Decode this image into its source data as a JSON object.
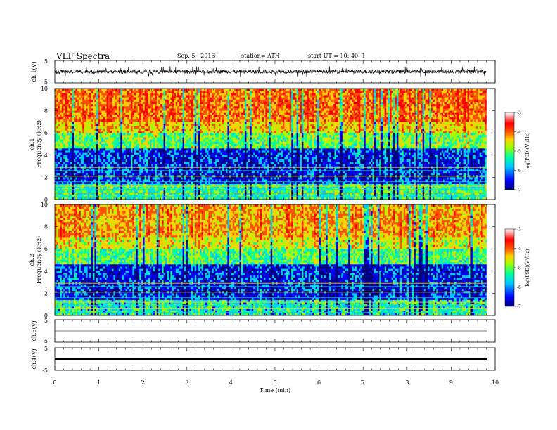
{
  "header": {
    "title": "VLF  Spectra",
    "date": "Sep. 5  , 2016",
    "station": "station= ATH",
    "start_time": "start  UT  =    10: 40: 1"
  },
  "chart_data": [
    {
      "type": "line",
      "panel": "ch1-waveform",
      "ylabel": "ch.1(V)",
      "y_ticks": [
        "5",
        "-5"
      ],
      "ylim": [
        -5,
        5
      ],
      "xlim": [
        0,
        10
      ],
      "data_extent": [
        0,
        9.8
      ],
      "trace": "dense noisy waveform, mostly within about ±1 V with frequent spikes to about ±2.5 V"
    },
    {
      "type": "heatmap",
      "panel": "ch1-spectrogram",
      "ylabel_line1": "ch.1",
      "ylabel_line2": "Frequency  (kHz)",
      "y_ticks": [
        "0",
        "2",
        "4",
        "6",
        "8",
        "10"
      ],
      "ylim": [
        0,
        10
      ],
      "xlim": [
        0,
        10
      ],
      "data_extent": [
        0,
        9.8
      ],
      "colorbar": {
        "label": "log(PSD)(V²/Hz)",
        "ticks": [
          "-3",
          "-4",
          "-5",
          "-6",
          "-7"
        ],
        "range": [
          -7,
          -3
        ]
      },
      "description": "High PSD (red/orange) above ~6 kHz, green/yellow 4–6 kHz, low PSD (blue) 1.5–4 kHz, with bright horizontal narrowband lines below 2 kHz"
    },
    {
      "type": "heatmap",
      "panel": "ch2-spectrogram",
      "ylabel_line1": "ch.2",
      "ylabel_line2": "Frequency  (kHz)",
      "y_ticks": [
        "0",
        "2",
        "4",
        "6",
        "8",
        "10"
      ],
      "ylim": [
        0,
        10
      ],
      "xlim": [
        0,
        10
      ],
      "data_extent": [
        0,
        9.8
      ],
      "colorbar": {
        "label": "log(PSD)(V²/Hz)",
        "ticks": [
          "-3",
          "-4",
          "-5",
          "-6",
          "-7"
        ],
        "range": [
          -7,
          -3
        ]
      },
      "description": "Similar structure to ch.1 with slightly weaker high-frequency emission"
    },
    {
      "type": "line",
      "panel": "ch3-waveform",
      "ylabel": "ch.3(V)",
      "y_ticks": [
        "5",
        "-5"
      ],
      "ylim": [
        -5,
        5
      ],
      "xlim": [
        0,
        10
      ],
      "data_extent": [
        0,
        9.8
      ],
      "trace": "near-flat line at about 0 V"
    },
    {
      "type": "line",
      "panel": "ch4-waveform",
      "ylabel": "ch.4(V)",
      "y_ticks": [
        "5",
        "-5"
      ],
      "ylim": [
        -5,
        5
      ],
      "xlim": [
        0,
        10
      ],
      "data_extent": [
        0,
        9.8
      ],
      "trace": "thick flat line at about 0 V"
    }
  ],
  "xaxis": {
    "label": "Time  (min)",
    "ticks": [
      "0",
      "1",
      "2",
      "3",
      "4",
      "5",
      "6",
      "7",
      "8",
      "9",
      "10"
    ],
    "range": [
      0,
      10
    ]
  },
  "colors": {
    "trace": "#000000",
    "colormap": [
      "#00007a",
      "#0000ff",
      "#00c8ff",
      "#00ffa0",
      "#a0ff00",
      "#ffd000",
      "#ff5000",
      "#ff0000",
      "#ffffff"
    ]
  }
}
